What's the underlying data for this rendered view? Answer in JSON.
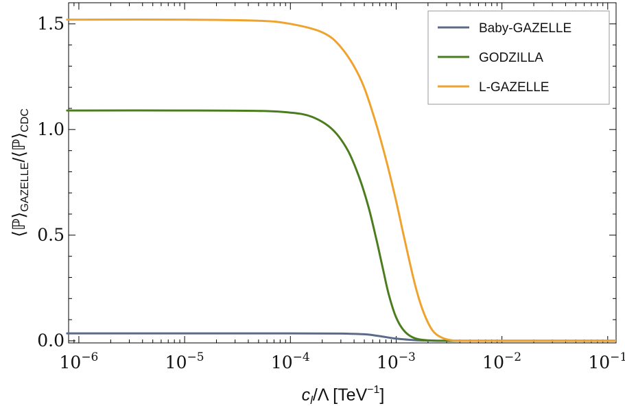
{
  "chart_data": {
    "type": "line",
    "xlabel": {
      "main": "c",
      "sub": "l",
      "rest": "/Λ [TeV",
      "sup": "−1",
      "close": "]"
    },
    "ylabel": {
      "a": "⟨ℙ⟩",
      "a_sub": "GAZELLE",
      "b": "/⟨ℙ⟩",
      "b_sub": "CDC"
    },
    "x_scale": "log",
    "xlim": [
      8e-07,
      0.12
    ],
    "ylim": [
      -0.01,
      1.6
    ],
    "x_ticks": [
      {
        "value": 1e-06,
        "base": "10",
        "exp": "−6"
      },
      {
        "value": 1e-05,
        "base": "10",
        "exp": "−5"
      },
      {
        "value": 0.0001,
        "base": "10",
        "exp": "−4"
      },
      {
        "value": 0.001,
        "base": "10",
        "exp": "−3"
      },
      {
        "value": 0.01,
        "base": "10",
        "exp": "−2"
      },
      {
        "value": 0.1,
        "base": "10",
        "exp": "−1"
      }
    ],
    "y_ticks": [
      {
        "value": 0.0,
        "label": "0.0"
      },
      {
        "value": 0.5,
        "label": "0.5"
      },
      {
        "value": 1.0,
        "label": "1.0"
      },
      {
        "value": 1.5,
        "label": "1.5"
      }
    ],
    "legend_position": "top-right",
    "series": [
      {
        "name": "Baby-GAZELLE",
        "color": "#5b6a86",
        "points": [
          [
            8e-07,
            0.035
          ],
          [
            1e-06,
            0.035
          ],
          [
            1e-05,
            0.035
          ],
          [
            0.0001,
            0.035
          ],
          [
            0.0003,
            0.034
          ],
          [
            0.0005,
            0.031
          ],
          [
            0.0007,
            0.022
          ],
          [
            0.001,
            0.01
          ],
          [
            0.0015,
            0.003
          ],
          [
            0.002,
            0.001
          ],
          [
            0.003,
            0.0
          ],
          [
            0.01,
            0.0
          ],
          [
            0.12,
            0.0
          ]
        ]
      },
      {
        "name": "GODZILLA",
        "color": "#4b7d1e",
        "points": [
          [
            8e-07,
            1.09
          ],
          [
            1e-06,
            1.09
          ],
          [
            1e-05,
            1.09
          ],
          [
            5e-05,
            1.088
          ],
          [
            0.0001,
            1.08
          ],
          [
            0.00016,
            1.06
          ],
          [
            0.00025,
            1.0
          ],
          [
            0.00035,
            0.9
          ],
          [
            0.00045,
            0.77
          ],
          [
            0.00055,
            0.63
          ],
          [
            0.00065,
            0.48
          ],
          [
            0.00075,
            0.34
          ],
          [
            0.00085,
            0.22
          ],
          [
            0.001,
            0.11
          ],
          [
            0.0012,
            0.045
          ],
          [
            0.0015,
            0.012
          ],
          [
            0.002,
            0.002
          ],
          [
            0.003,
            0.0
          ],
          [
            0.01,
            0.0
          ],
          [
            0.12,
            0.0
          ]
        ]
      },
      {
        "name": "L-GAZELLE",
        "color": "#f0a22e",
        "points": [
          [
            8e-07,
            1.52
          ],
          [
            1e-06,
            1.52
          ],
          [
            1e-05,
            1.52
          ],
          [
            5e-05,
            1.515
          ],
          [
            0.0001,
            1.5
          ],
          [
            0.0002,
            1.46
          ],
          [
            0.0003,
            1.39
          ],
          [
            0.00045,
            1.25
          ],
          [
            0.0006,
            1.08
          ],
          [
            0.0008,
            0.86
          ],
          [
            0.001,
            0.66
          ],
          [
            0.0012,
            0.48
          ],
          [
            0.0015,
            0.27
          ],
          [
            0.0018,
            0.14
          ],
          [
            0.0022,
            0.05
          ],
          [
            0.0027,
            0.015
          ],
          [
            0.0033,
            0.003
          ],
          [
            0.004,
            0.0
          ],
          [
            0.01,
            0.0
          ],
          [
            0.12,
            0.0
          ]
        ]
      }
    ]
  }
}
